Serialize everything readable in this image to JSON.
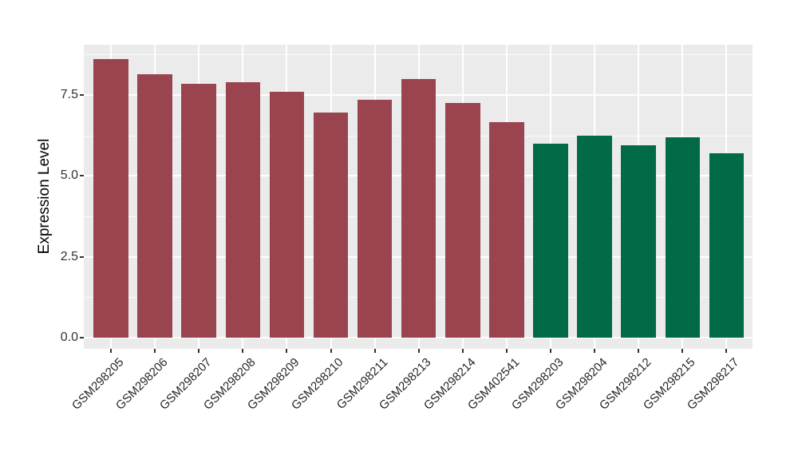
{
  "chart_data": {
    "type": "bar",
    "title": "",
    "xlabel": "",
    "ylabel": "Expression Level",
    "ylim": [
      0,
      9.05
    ],
    "ytick_labels": [
      "0.0",
      "2.5",
      "5.0",
      "7.5"
    ],
    "ytick_values": [
      0,
      2.5,
      5,
      7.5
    ],
    "minor_gridline_values": [
      1.25,
      3.75,
      6.25,
      8.75
    ],
    "grid": "major-and-minor-horizontal, major-vertical-at-category-centers",
    "legend_position": "none",
    "categories": [
      "GSM298205",
      "GSM298206",
      "GSM298207",
      "GSM298208",
      "GSM298209",
      "GSM298210",
      "GSM298211",
      "GSM298213",
      "GSM298214",
      "GSM402541",
      "GSM298203",
      "GSM298204",
      "GSM298212",
      "GSM298215",
      "GSM298217"
    ],
    "values": [
      8.6,
      8.15,
      7.85,
      7.9,
      7.6,
      6.95,
      7.35,
      8.0,
      7.25,
      6.65,
      6.0,
      6.25,
      5.95,
      6.2,
      5.7
    ],
    "bar_group_index": [
      0,
      0,
      0,
      0,
      0,
      0,
      0,
      0,
      0,
      0,
      1,
      1,
      1,
      1,
      1
    ],
    "group_colors": [
      "#9A4450",
      "#006B46"
    ],
    "colors": {
      "panel_background": "#EBEBEB",
      "major_gridline": "#FFFFFF",
      "minor_gridline": "#FFFFFF",
      "axis_text": "#333333",
      "axis_title": "#000000",
      "figure_background": "#FFFFFF"
    }
  }
}
